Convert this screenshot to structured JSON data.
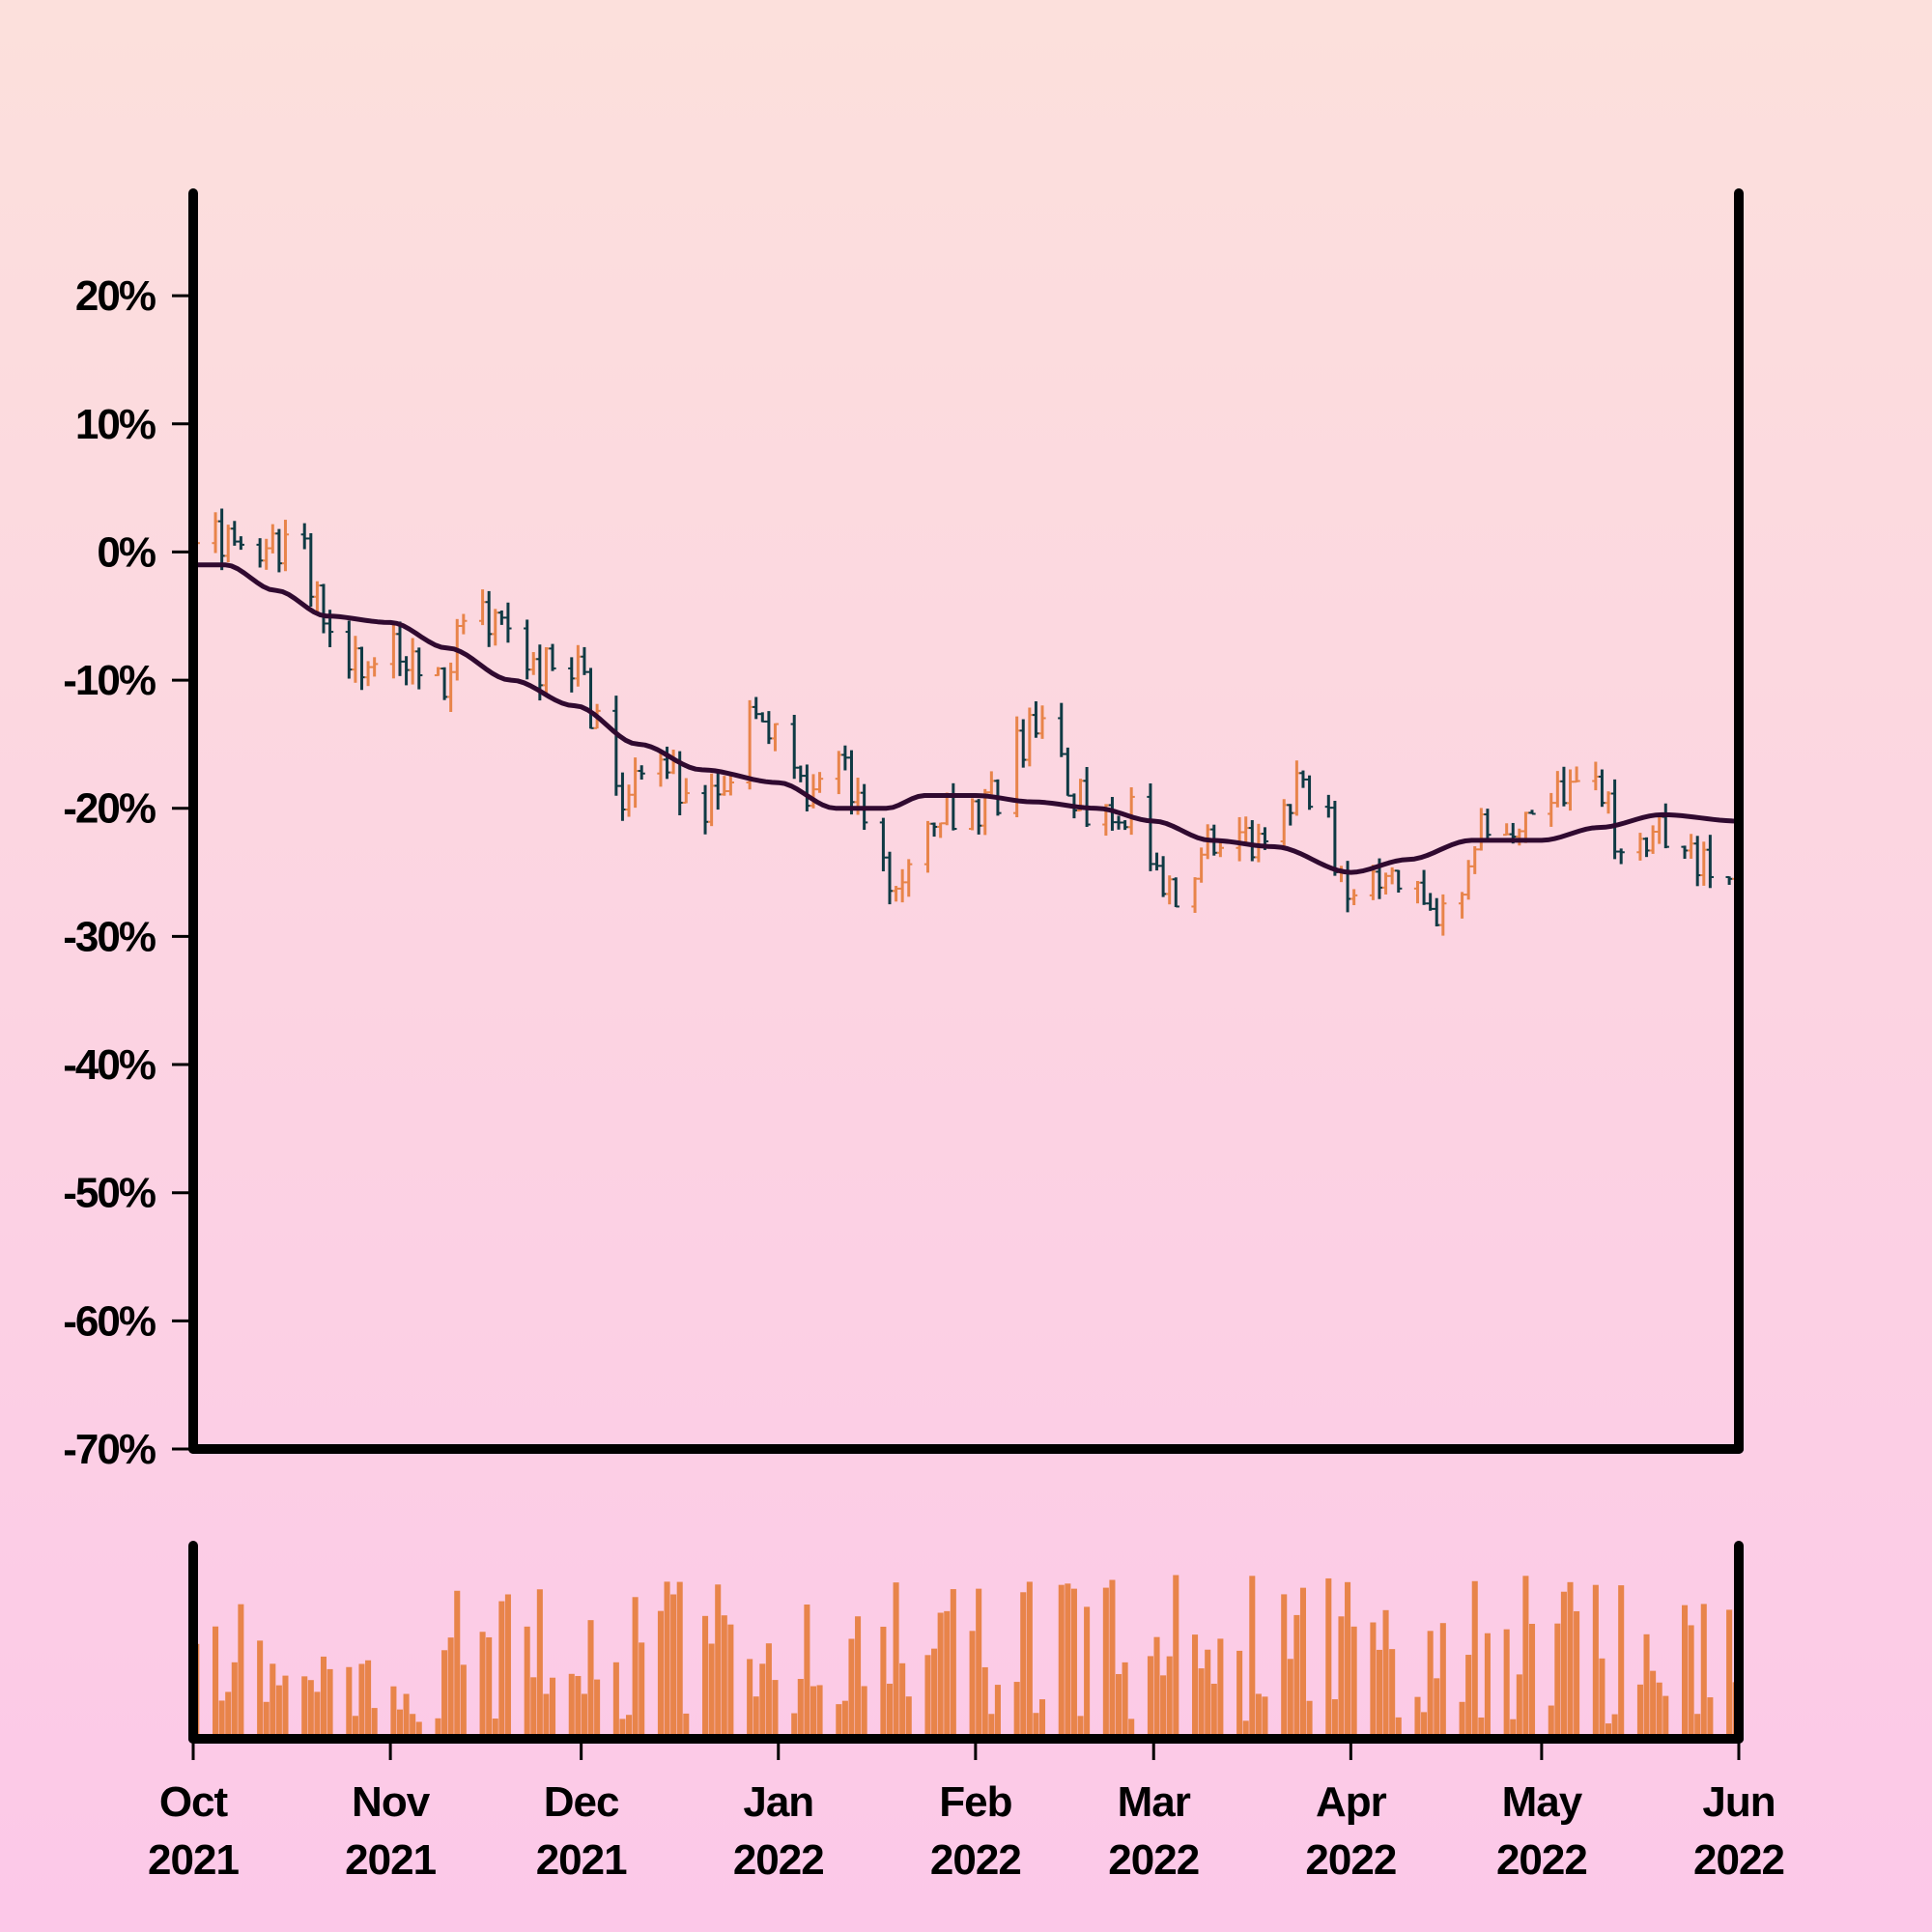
{
  "chart_data": [
    {
      "type": "ohlc",
      "title": "",
      "xlabel": "",
      "ylabel": "",
      "ylim": [
        -0.7,
        0.28
      ],
      "y_ticks": [
        0.2,
        0.1,
        0.0,
        -0.1,
        -0.2,
        -0.3,
        -0.4,
        -0.5,
        -0.6,
        -0.7
      ],
      "y_tick_labels": [
        "20%",
        "10%",
        "0%",
        "-10%",
        "-20%",
        "-30%",
        "-40%",
        "-50%",
        "-60%",
        "-70%"
      ],
      "x_range": [
        "2021-10-01",
        "2022-06-01"
      ],
      "grid": false,
      "colors": {
        "up": "#e8844a",
        "down": "#0f3a44",
        "moving_average": "#300a30",
        "axis": "#000000"
      },
      "moving_average_key_points": [
        [
          "2021-10-01",
          -0.01
        ],
        [
          "2021-10-06",
          -0.01
        ],
        [
          "2021-10-14",
          -0.03
        ],
        [
          "2021-10-22",
          -0.05
        ],
        [
          "2021-11-01",
          -0.055
        ],
        [
          "2021-11-10",
          -0.075
        ],
        [
          "2021-11-20",
          -0.1
        ],
        [
          "2021-11-30",
          -0.12
        ],
        [
          "2021-12-10",
          -0.15
        ],
        [
          "2021-12-20",
          -0.17
        ],
        [
          "2022-01-01",
          -0.18
        ],
        [
          "2022-01-10",
          -0.2
        ],
        [
          "2022-01-18",
          -0.2
        ],
        [
          "2022-01-24",
          -0.19
        ],
        [
          "2022-02-01",
          -0.19
        ],
        [
          "2022-02-10",
          -0.195
        ],
        [
          "2022-02-20",
          -0.2
        ],
        [
          "2022-03-01",
          -0.21
        ],
        [
          "2022-03-10",
          -0.225
        ],
        [
          "2022-03-20",
          -0.23
        ],
        [
          "2022-04-01",
          -0.25
        ],
        [
          "2022-04-10",
          -0.24
        ],
        [
          "2022-04-20",
          -0.225
        ],
        [
          "2022-05-01",
          -0.225
        ],
        [
          "2022-05-10",
          -0.215
        ],
        [
          "2022-05-20",
          -0.205
        ],
        [
          "2022-06-01",
          -0.21
        ]
      ]
    },
    {
      "type": "bar",
      "title": "",
      "ylabel": "",
      "series_name": "volume",
      "bar_color": "#e8844a",
      "x_ticks": [
        "2021-10-01",
        "2021-11-01",
        "2021-12-01",
        "2022-01-01",
        "2022-02-01",
        "2022-03-01",
        "2022-04-01",
        "2022-05-01",
        "2022-06-01"
      ],
      "x_tick_labels": [
        [
          "Oct",
          "2021"
        ],
        [
          "Nov",
          "2021"
        ],
        [
          "Dec",
          "2021"
        ],
        [
          "Jan",
          "2022"
        ],
        [
          "Feb",
          "2022"
        ],
        [
          "Mar",
          "2022"
        ],
        [
          "Apr",
          "2022"
        ],
        [
          "May",
          "2022"
        ],
        [
          "Jun",
          "2022"
        ]
      ]
    }
  ]
}
